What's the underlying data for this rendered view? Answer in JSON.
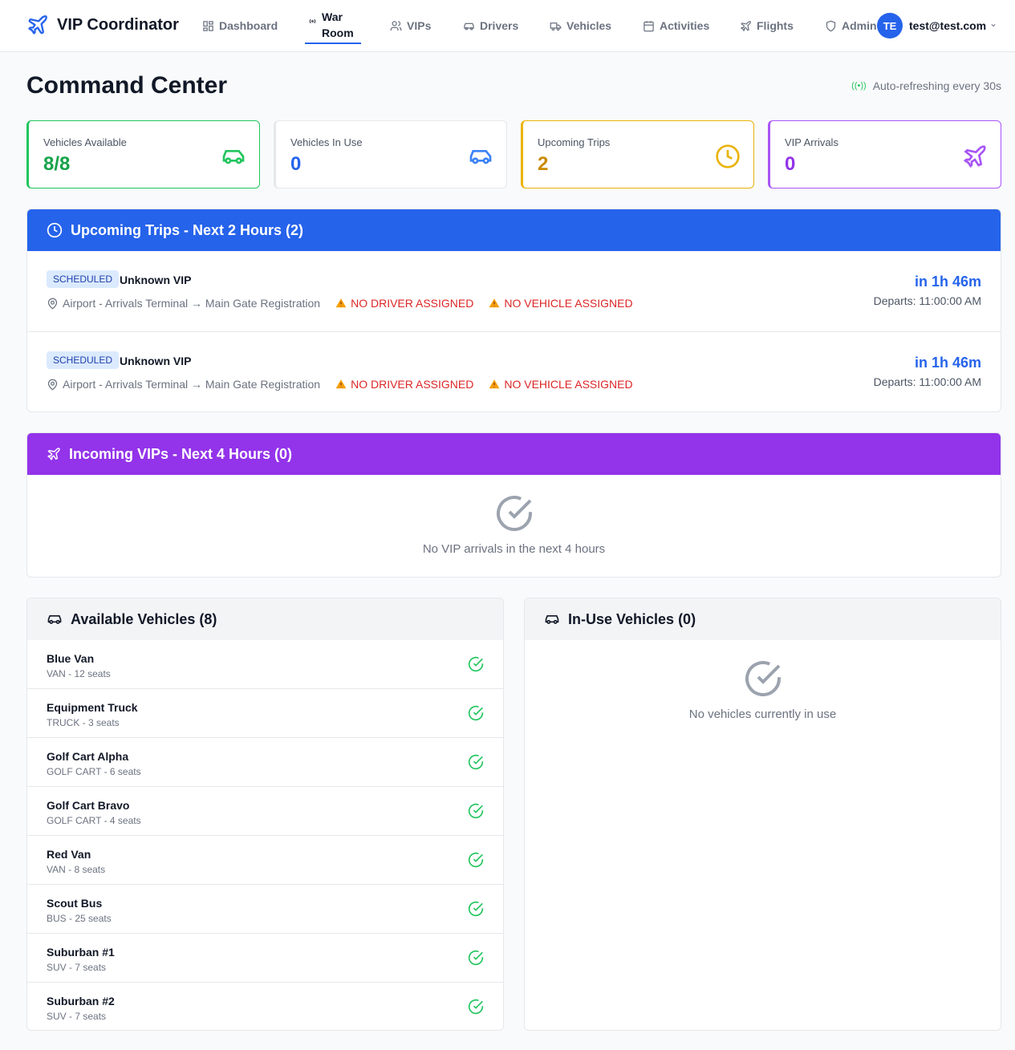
{
  "app": {
    "title": "VIP Coordinator"
  },
  "nav": [
    {
      "label": "Dashboard",
      "icon": "dashboard-icon"
    },
    {
      "label": "War Room",
      "icon": "radio-icon",
      "active": true
    },
    {
      "label": "VIPs",
      "icon": "users-icon"
    },
    {
      "label": "Drivers",
      "icon": "car-icon"
    },
    {
      "label": "Vehicles",
      "icon": "truck-icon"
    },
    {
      "label": "Activities",
      "icon": "calendar-icon"
    },
    {
      "label": "Flights",
      "icon": "plane-icon"
    },
    {
      "label": "Admin",
      "icon": "shield-icon"
    }
  ],
  "user": {
    "initials": "TE",
    "email": "test@test.com"
  },
  "page": {
    "title": "Command Center",
    "refresh": "Auto-refreshing every 30s"
  },
  "stats": [
    {
      "label": "Vehicles Available",
      "value": "8/8",
      "color": "#16a34a"
    },
    {
      "label": "Vehicles In Use",
      "value": "0",
      "color": "#2563eb"
    },
    {
      "label": "Upcoming Trips",
      "value": "2",
      "color": "#ca8a04"
    },
    {
      "label": "VIP Arrivals",
      "value": "0",
      "color": "#9333ea"
    }
  ],
  "trips": {
    "title": "Upcoming Trips - Next 2 Hours (2)",
    "items": [
      {
        "status": "SCHEDULED",
        "vip": "Unknown VIP",
        "route": "Airport - Arrivals Terminal → Main Gate Registration",
        "driver_warning": "NO DRIVER ASSIGNED",
        "vehicle_warning": "NO VEHICLE ASSIGNED",
        "eta": "in 1h 46m",
        "departs": "Departs: 11:00:00 AM"
      },
      {
        "status": "SCHEDULED",
        "vip": "Unknown VIP",
        "route": "Airport - Arrivals Terminal → Main Gate Registration",
        "driver_warning": "NO DRIVER ASSIGNED",
        "vehicle_warning": "NO VEHICLE ASSIGNED",
        "eta": "in 1h 46m",
        "departs": "Departs: 11:00:00 AM"
      }
    ]
  },
  "vips": {
    "title": "Incoming VIPs - Next 4 Hours (0)",
    "empty": "No VIP arrivals in the next 4 hours"
  },
  "available": {
    "title": "Available Vehicles (8)",
    "items": [
      {
        "name": "Blue Van",
        "sub": "VAN - 12 seats"
      },
      {
        "name": "Equipment Truck",
        "sub": "TRUCK - 3 seats"
      },
      {
        "name": "Golf Cart Alpha",
        "sub": "GOLF CART - 6 seats"
      },
      {
        "name": "Golf Cart Bravo",
        "sub": "GOLF CART - 4 seats"
      },
      {
        "name": "Red Van",
        "sub": "VAN - 8 seats"
      },
      {
        "name": "Scout Bus",
        "sub": "BUS - 25 seats"
      },
      {
        "name": "Suburban #1",
        "sub": "SUV - 7 seats"
      },
      {
        "name": "Suburban #2",
        "sub": "SUV - 7 seats"
      }
    ]
  },
  "inuse": {
    "title": "In-Use Vehicles (0)",
    "empty": "No vehicles currently in use"
  }
}
